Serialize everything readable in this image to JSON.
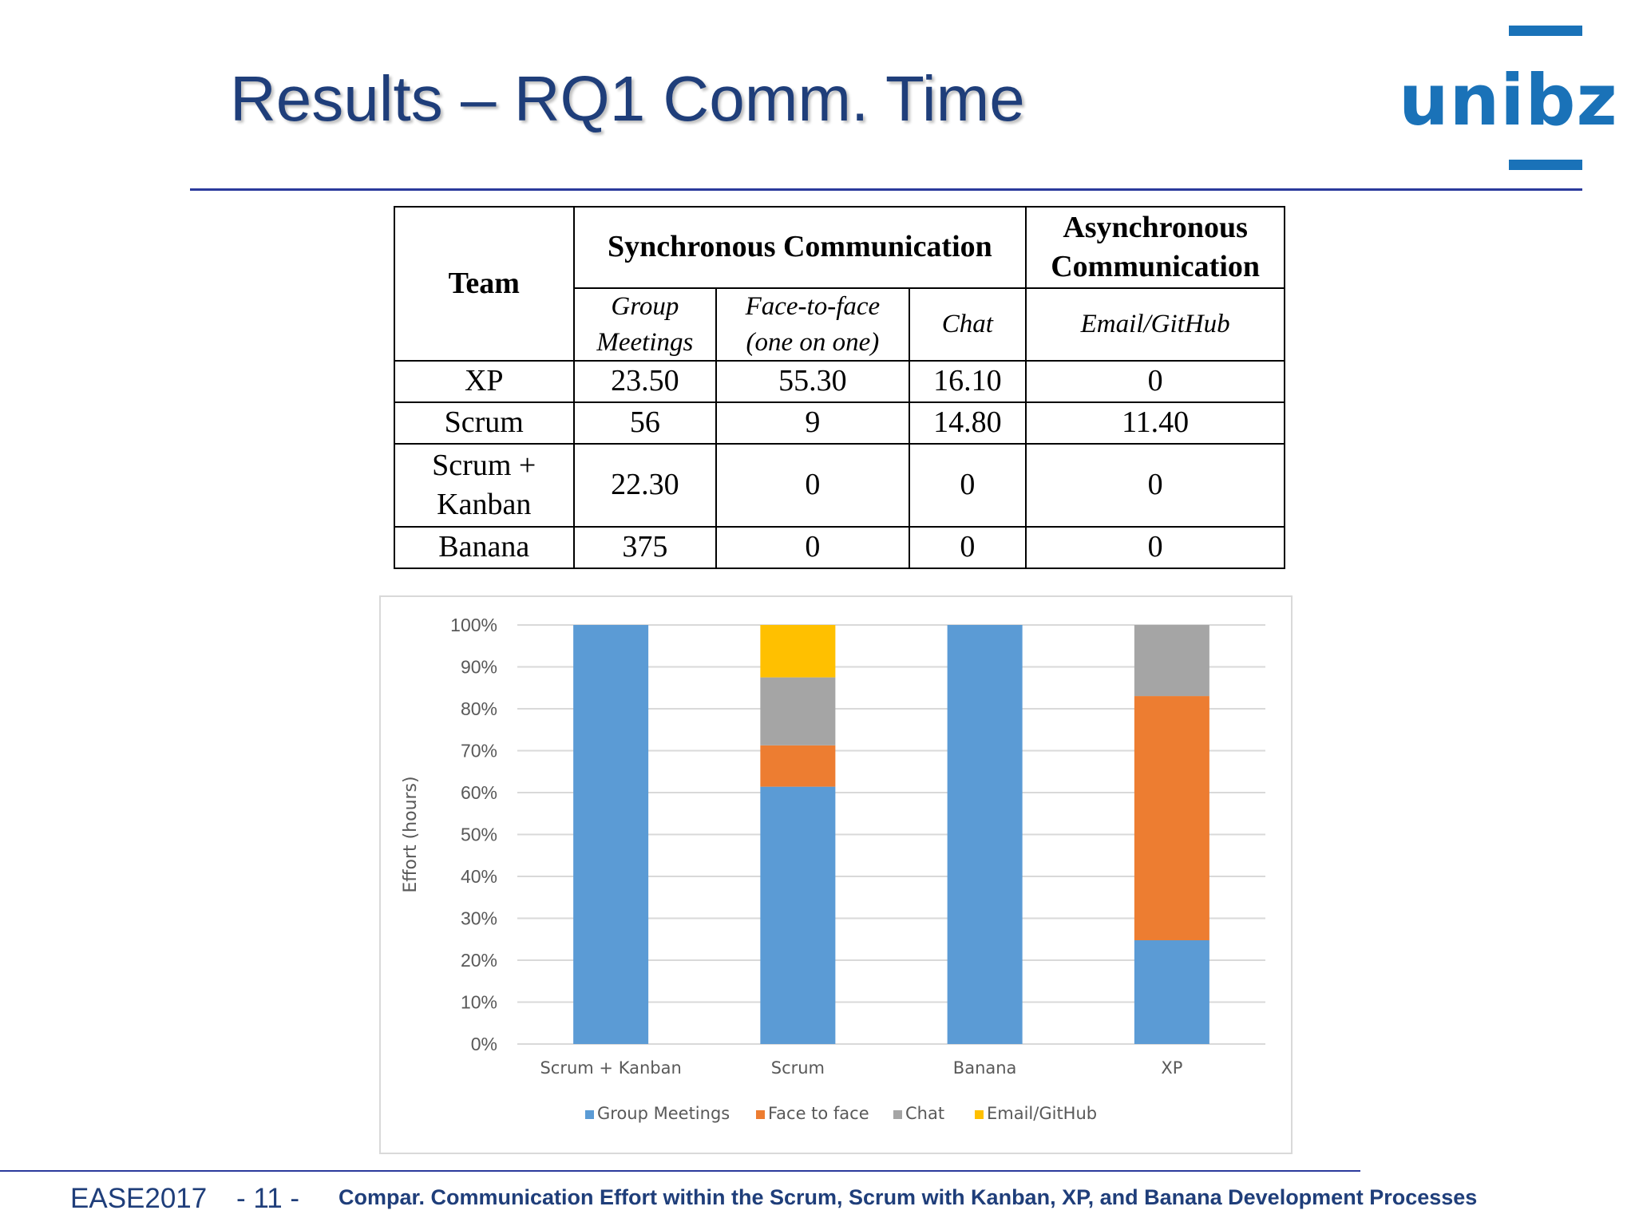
{
  "slide": {
    "title": "Results – RQ1 Comm. Time",
    "logo_text": "unibz",
    "footer": {
      "conference": "EASE2017",
      "page": "- 11 -",
      "caption": "Compar. Communication Effort within the Scrum, Scrum with Kanban, XP, and Banana Development Processes"
    }
  },
  "table": {
    "team_header": "Team",
    "sync_header": "Synchronous Communication",
    "async_header_line1": "Asynchronous",
    "async_header_line2": "Communication",
    "sub_group_line1": "Group",
    "sub_group_line2": "Meetings",
    "sub_face_line1": "Face-to-face",
    "sub_face_line2": "(one on one)",
    "sub_chat": "Chat",
    "sub_email": "Email/GitHub",
    "rows": [
      {
        "team": "XP",
        "group": "23.50",
        "face": "55.30",
        "chat": "16.10",
        "email": "0"
      },
      {
        "team": "Scrum",
        "group": "56",
        "face": "9",
        "chat": "14.80",
        "email": "11.40"
      },
      {
        "team_line1": "Scrum +",
        "team_line2": "Kanban",
        "group": "22.30",
        "face": "0",
        "chat": "0",
        "email": "0"
      },
      {
        "team": "Banana",
        "group": "375",
        "face": "0",
        "chat": "0",
        "email": "0"
      }
    ]
  },
  "chart_data": {
    "type": "bar",
    "stacked": "percent",
    "categories": [
      "Scrum + Kanban",
      "Scrum",
      "Banana",
      "XP"
    ],
    "series": [
      {
        "name": "Group Meetings",
        "color": "#5b9bd5",
        "values": [
          22.3,
          56,
          375,
          23.5
        ]
      },
      {
        "name": "Face to face",
        "color": "#ed7d31",
        "values": [
          0,
          9,
          0,
          55.3
        ]
      },
      {
        "name": "Chat",
        "color": "#a5a5a5",
        "values": [
          0,
          14.8,
          0,
          16.1
        ]
      },
      {
        "name": "Email/GitHub",
        "color": "#ffc000",
        "values": [
          0,
          11.4,
          0,
          0
        ]
      }
    ],
    "ylabel": "Effort (hours)",
    "yticks": [
      "0%",
      "10%",
      "20%",
      "30%",
      "40%",
      "50%",
      "60%",
      "70%",
      "80%",
      "90%",
      "100%"
    ],
    "ylim": [
      0,
      100
    ],
    "grid": true,
    "legend": "bottom"
  }
}
